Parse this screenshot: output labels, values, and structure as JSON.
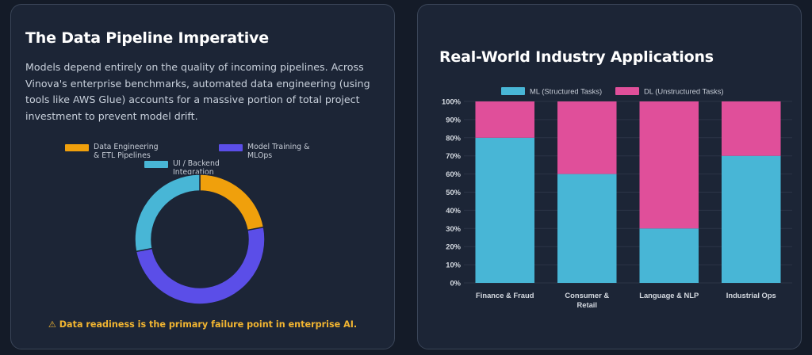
{
  "left_panel": {
    "title": "The Data Pipeline Imperative",
    "description": "Models depend entirely on the quality of incoming pipelines. Across Vinova's enterprise benchmarks, automated data engineering (using tools like AWS Glue) accounts for a massive portion of total project investment to prevent model drift.",
    "warning_icon": "warning-icon",
    "warning_symbol": "⚠",
    "warning": "Data readiness is the primary failure point in enterprise AI."
  },
  "right_panel": {
    "title": "Real-World Industry Applications"
  },
  "chart_data": [
    {
      "type": "pie",
      "variant": "doughnut",
      "legend_position": "top",
      "slices": [
        {
          "label_lines": [
            "Data Engineering",
            "& ETL Pipelines"
          ],
          "value": 22,
          "color": "#f0a00c"
        },
        {
          "label_lines": [
            "Model Training &",
            "MLOps"
          ],
          "value": 50,
          "color": "#5b4ee8"
        },
        {
          "label_lines": [
            "UI / Backend",
            "Integration"
          ],
          "value": 28,
          "color": "#48b6d6"
        }
      ]
    },
    {
      "type": "bar",
      "stacked": true,
      "legend_position": "top",
      "categories": [
        [
          "Finance & Fraud"
        ],
        [
          "Consumer &",
          "Retail"
        ],
        [
          "Language & NLP"
        ],
        [
          "Industrial Ops"
        ]
      ],
      "series": [
        {
          "name": "ML (Structured Tasks)",
          "values": [
            80,
            60,
            30,
            70
          ],
          "color": "#48b6d6"
        },
        {
          "name": "DL (Unstructured Tasks)",
          "values": [
            20,
            40,
            70,
            30
          ],
          "color": "#e04f9a"
        }
      ],
      "ylim": [
        0,
        100
      ],
      "yticks": [
        "0%",
        "10%",
        "20%",
        "30%",
        "40%",
        "50%",
        "60%",
        "70%",
        "80%",
        "90%",
        "100%"
      ],
      "grid": true
    }
  ]
}
